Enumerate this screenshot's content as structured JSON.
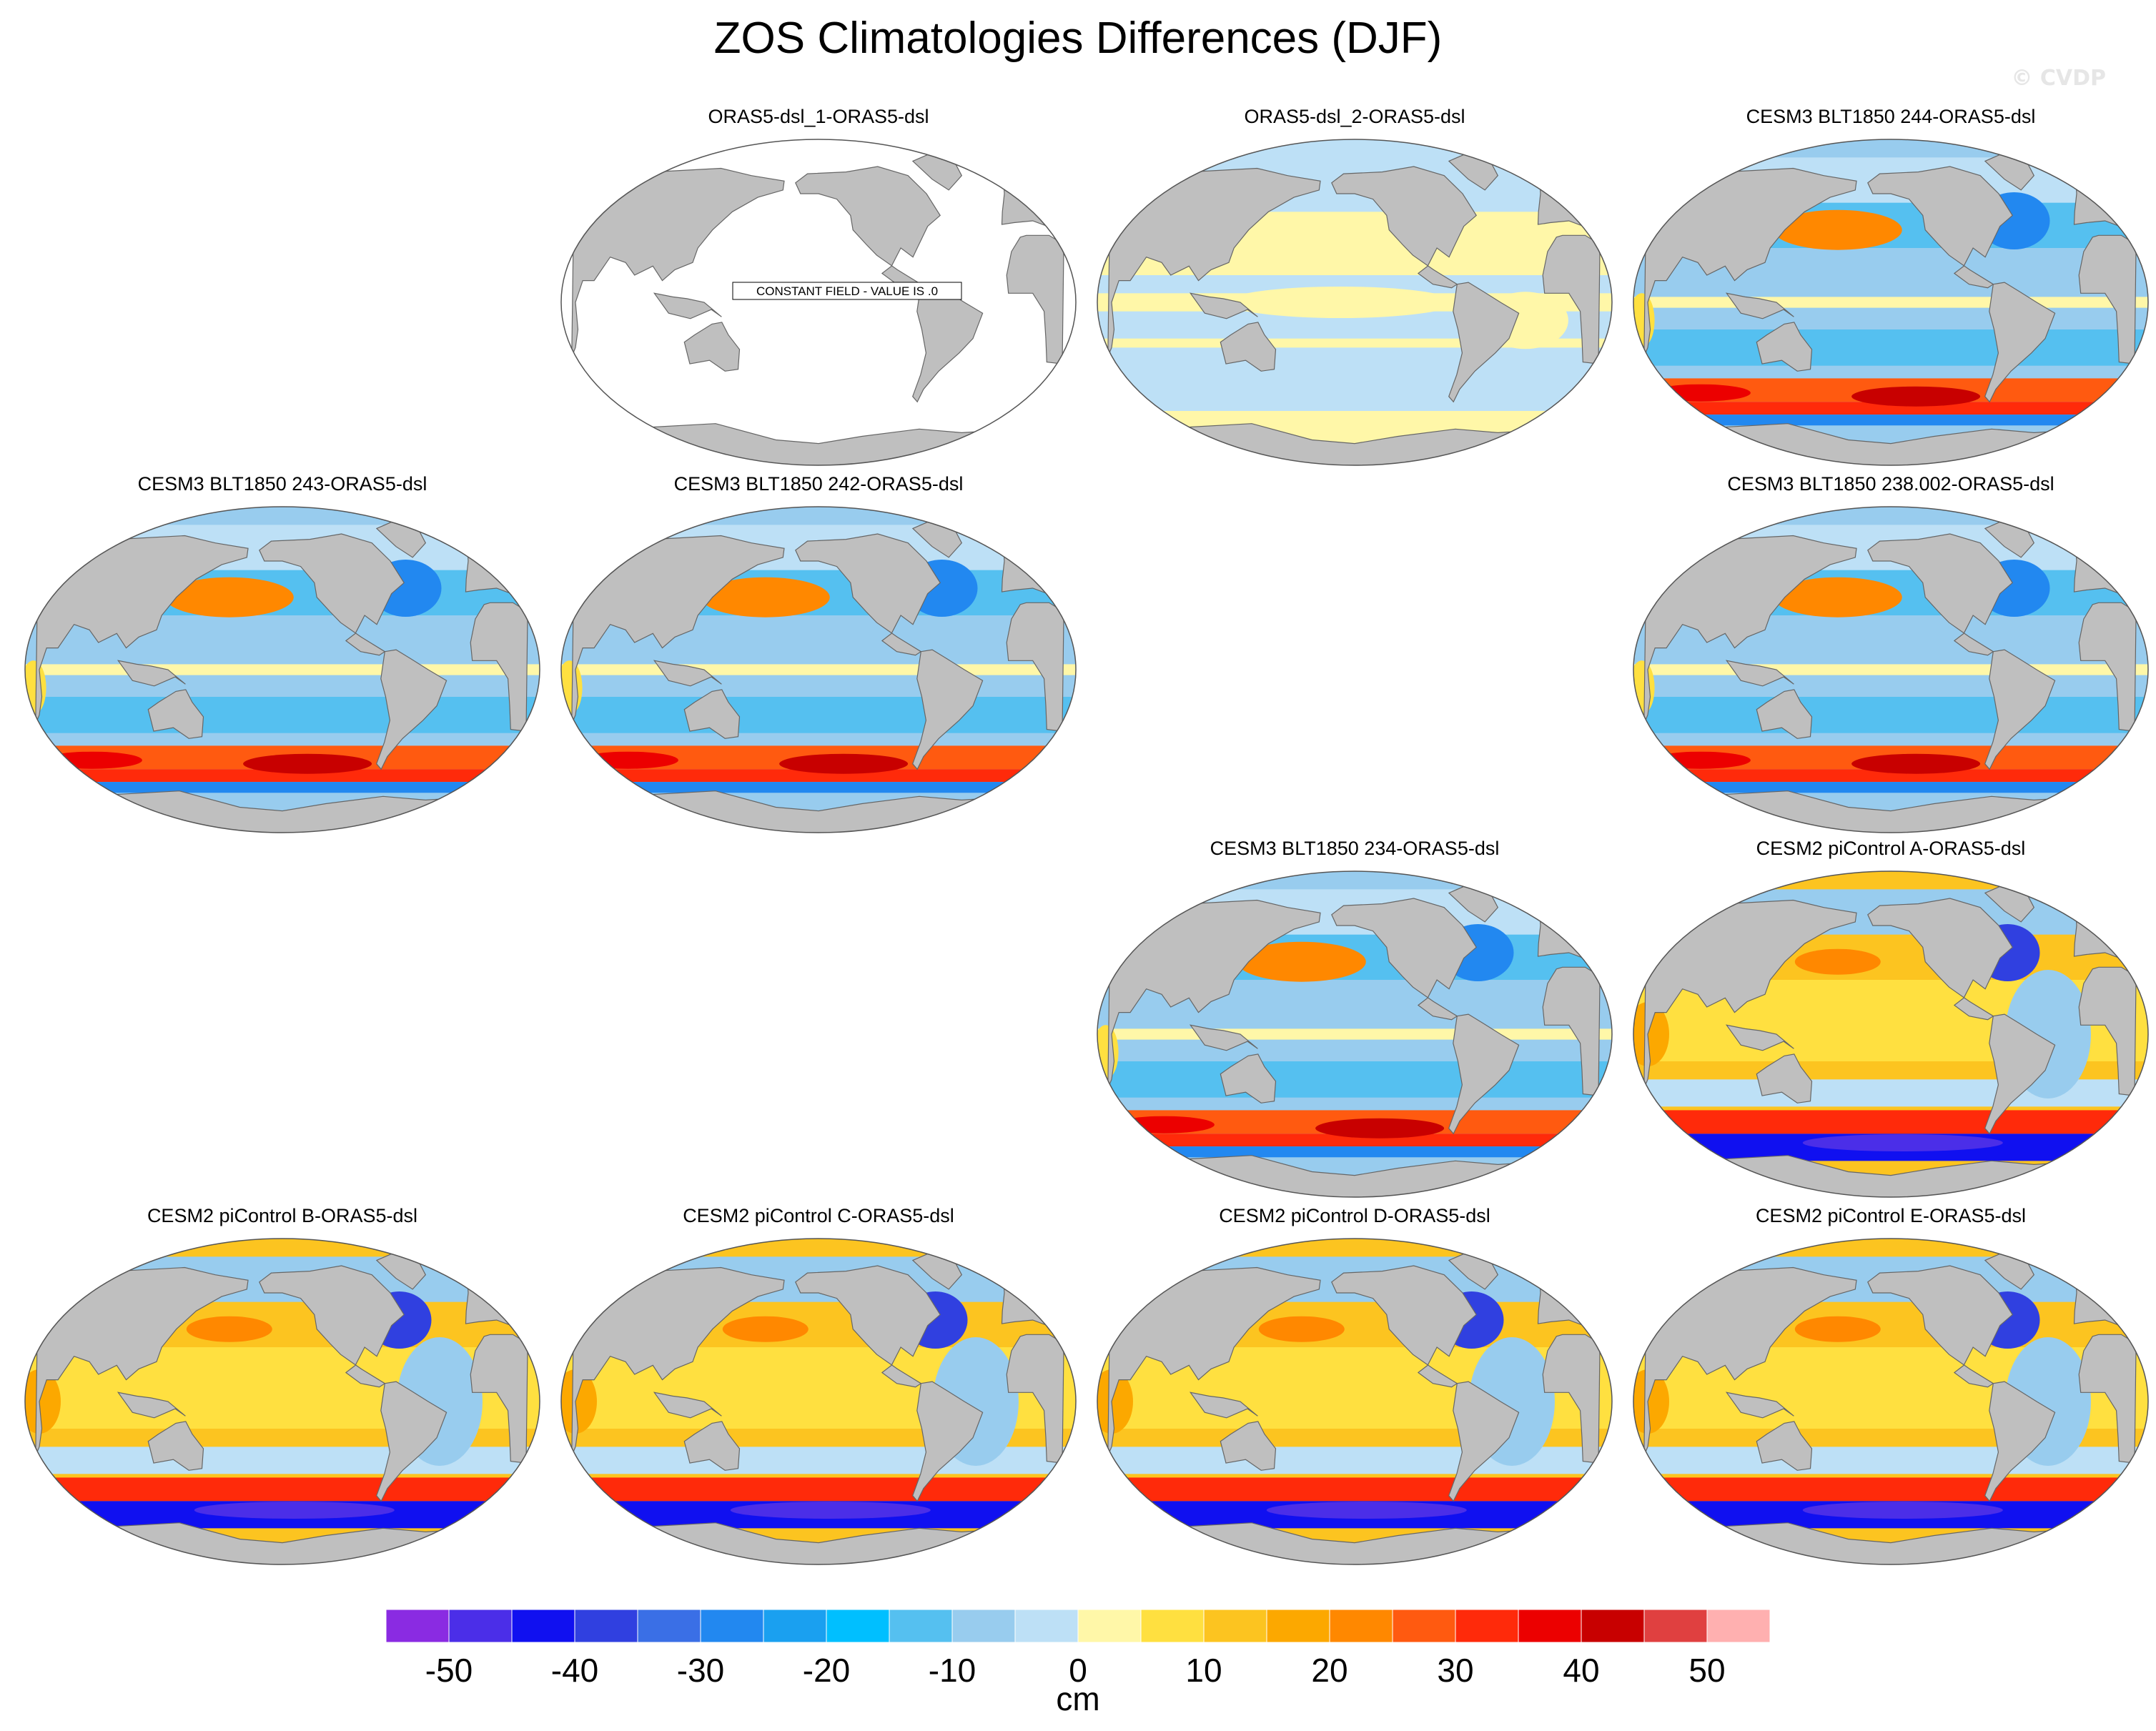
{
  "figure": {
    "title": "ZOS Climatologies Differences (DJF)",
    "credit": "© CVDP"
  },
  "panels": [
    {
      "title": "ORAS5-dsl_1-ORAS5-dsl",
      "pattern": "constant",
      "note": "CONSTANT FIELD - VALUE IS .0"
    },
    {
      "title": "ORAS5-dsl_2-ORAS5-dsl",
      "pattern": "near-zero"
    },
    {
      "title": "CESM3 BLT1850 244-ORAS5-dsl",
      "pattern": "cesm3"
    },
    {
      "title": "CESM3 BLT1850 243-ORAS5-dsl",
      "pattern": "cesm3"
    },
    {
      "title": "CESM3 BLT1850 242-ORAS5-dsl",
      "pattern": "cesm3"
    },
    {
      "title": "CESM3 BLT1850 238.002-ORAS5-dsl",
      "pattern": "cesm3"
    },
    {
      "title": "CESM3 BLT1850 234-ORAS5-dsl",
      "pattern": "cesm3"
    },
    {
      "title": "CESM2 piControl A-ORAS5-dsl",
      "pattern": "cesm2"
    },
    {
      "title": "CESM2 piControl B-ORAS5-dsl",
      "pattern": "cesm2"
    },
    {
      "title": "CESM2 piControl C-ORAS5-dsl",
      "pattern": "cesm2"
    },
    {
      "title": "CESM2 piControl D-ORAS5-dsl",
      "pattern": "cesm2"
    },
    {
      "title": "CESM2 piControl E-ORAS5-dsl",
      "pattern": "cesm2"
    }
  ],
  "colorbar": {
    "units": "cm",
    "levels": [
      -55,
      -50,
      -45,
      -40,
      -35,
      -30,
      -25,
      -20,
      -15,
      -10,
      -5,
      0,
      5,
      10,
      15,
      20,
      25,
      30,
      35,
      40,
      45,
      50,
      55
    ],
    "tick_labels": [
      "-50",
      "-40",
      "-30",
      "-20",
      "-10",
      "0",
      "10",
      "20",
      "30",
      "40",
      "50"
    ],
    "tick_values": [
      -50,
      -40,
      -30,
      -20,
      -10,
      0,
      10,
      20,
      30,
      40,
      50
    ],
    "colors": [
      "#8a2be2",
      "#4b2ee8",
      "#1010f0",
      "#3040e0",
      "#3a6fe6",
      "#2288f0",
      "#1aa0f0",
      "#00bfff",
      "#55c0f0",
      "#98ccee",
      "#bde0f6",
      "#fff7a8",
      "#ffe040",
      "#fcc420",
      "#fca800",
      "#ff8800",
      "#ff5a10",
      "#ff2a0a",
      "#ec0000",
      "#c80000",
      "#e04040",
      "#ffb0b0"
    ],
    "land_color": "#bfbfbf"
  }
}
